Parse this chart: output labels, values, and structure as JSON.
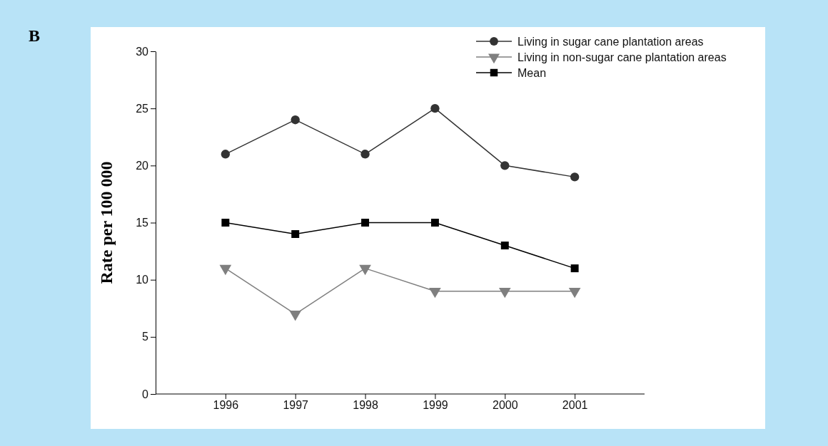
{
  "chart_data": {
    "type": "line",
    "ylabel": "Rate per 100 000",
    "annotations": [
      "B"
    ],
    "categories": [
      "1996",
      "1997",
      "1998",
      "1999",
      "2000",
      "2001"
    ],
    "ylim": [
      0,
      30
    ],
    "yticks": [
      0,
      5,
      10,
      15,
      20,
      25,
      30
    ],
    "legend": "top right",
    "grid": false,
    "line_style": "solid",
    "series": [
      {
        "name": "Living in sugar cane plantation areas",
        "color": "#333333",
        "marker": "circle",
        "values": [
          21,
          24,
          21,
          25,
          20,
          19
        ]
      },
      {
        "name": "Living in non-sugar cane plantation areas",
        "color": "#7f7f7f",
        "marker": "triangle",
        "values": [
          11,
          7,
          11,
          9,
          9,
          9
        ]
      },
      {
        "name": "Mean",
        "color": "#000000",
        "marker": "square",
        "values": [
          15,
          14,
          15,
          15,
          13,
          11
        ]
      }
    ]
  }
}
